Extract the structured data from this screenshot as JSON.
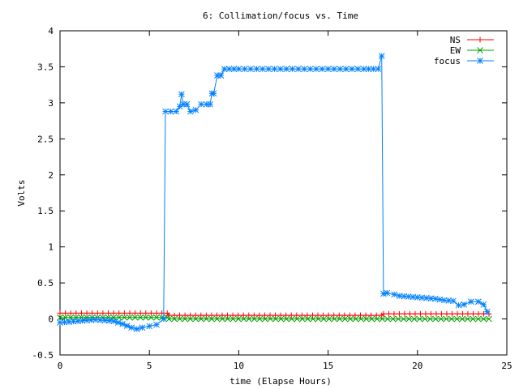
{
  "chart_data": {
    "type": "line",
    "title": "6: Collimation/focus vs. Time",
    "xlabel": "time (Elapse Hours)",
    "ylabel": "Volts",
    "xlim": [
      0,
      25
    ],
    "ylim": [
      -0.5,
      4
    ],
    "x_ticks": [
      "0",
      "5",
      "10",
      "15",
      "20",
      "25"
    ],
    "y_ticks": [
      "-0.5",
      "0",
      "0.5",
      "1",
      "1.5",
      "2",
      "2.5",
      "3",
      "3.5",
      "4"
    ],
    "grid": false,
    "legend_position": "top-right",
    "series": [
      {
        "name": "NS",
        "color": "#ff0000",
        "marker": "plus",
        "x": [
          0,
          6,
          6.1,
          18,
          18.1,
          24
        ],
        "y": [
          0.08,
          0.08,
          0.05,
          0.05,
          0.07,
          0.07
        ]
      },
      {
        "name": "EW",
        "color": "#00a000",
        "marker": "cross",
        "x": [
          0,
          6,
          6.1,
          24
        ],
        "y": [
          0.02,
          0.02,
          0.0,
          0.0
        ]
      },
      {
        "name": "focus",
        "color": "#0080ff",
        "marker": "star",
        "x": [
          0,
          0.5,
          1,
          1.5,
          2,
          2.5,
          3,
          3.5,
          4,
          4.3,
          4.6,
          5,
          5.4,
          5.8,
          5.9,
          6.2,
          6.5,
          6.7,
          6.8,
          6.9,
          7.1,
          7.3,
          7.6,
          7.9,
          8.2,
          8.4,
          8.5,
          8.6,
          8.8,
          9.0,
          9.2,
          10,
          11,
          12,
          13,
          14,
          15,
          16,
          17,
          17.8,
          18.0,
          18.1,
          18.3,
          18.7,
          19,
          19.5,
          20,
          20.5,
          21,
          21.5,
          22,
          22.3,
          22.6,
          23,
          23.4,
          23.7,
          23.9
        ],
        "y": [
          -0.05,
          -0.04,
          -0.03,
          -0.02,
          -0.01,
          -0.02,
          -0.03,
          -0.07,
          -0.12,
          -0.14,
          -0.12,
          -0.1,
          -0.08,
          0.0,
          2.88,
          2.88,
          2.88,
          2.95,
          3.12,
          2.98,
          2.98,
          2.88,
          2.9,
          2.98,
          2.98,
          2.98,
          3.13,
          3.13,
          3.38,
          3.38,
          3.47,
          3.47,
          3.47,
          3.47,
          3.47,
          3.47,
          3.47,
          3.47,
          3.47,
          3.47,
          3.65,
          0.35,
          0.36,
          0.34,
          0.32,
          0.31,
          0.3,
          0.29,
          0.28,
          0.26,
          0.25,
          0.19,
          0.2,
          0.24,
          0.24,
          0.2,
          0.1
        ]
      }
    ]
  }
}
